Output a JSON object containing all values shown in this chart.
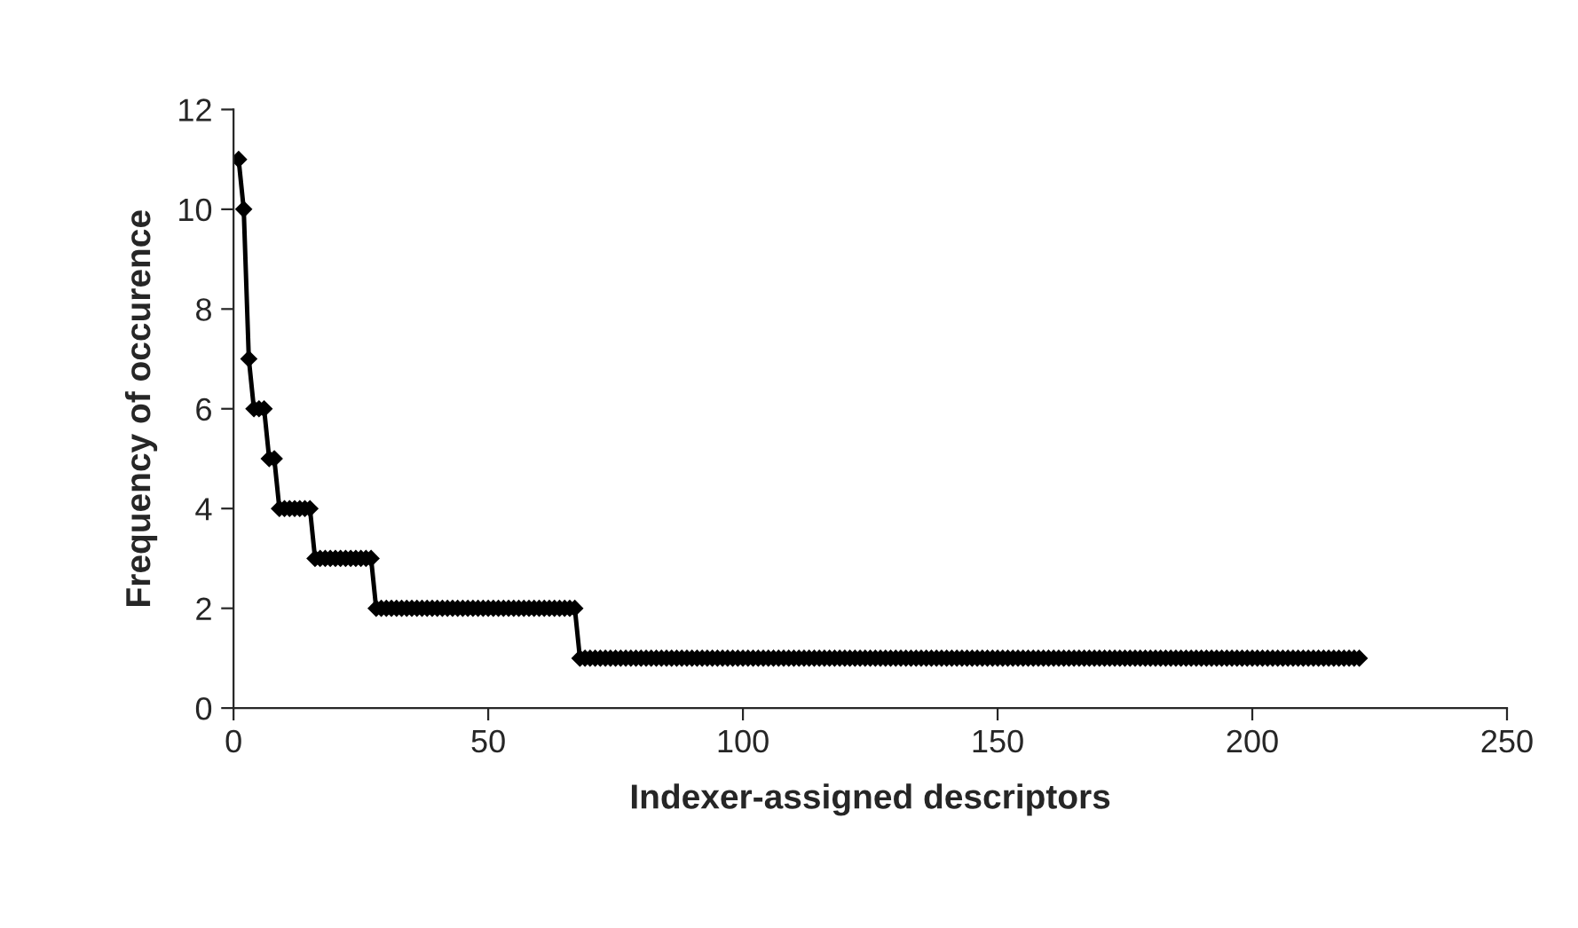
{
  "chart_data": {
    "type": "line",
    "xlabel": "Indexer-assigned descriptors",
    "ylabel": "Frequency of occurence",
    "xlim": [
      0,
      250
    ],
    "xticks": [
      0,
      50,
      100,
      150,
      200,
      250
    ],
    "ylim": [
      0,
      12
    ],
    "yticks": [
      0,
      2,
      4,
      6,
      8,
      10,
      12
    ],
    "grid": false,
    "marker": "diamond",
    "line_style": "solid",
    "series": [
      {
        "color": "#000000",
        "x": [
          1,
          2,
          3,
          4,
          5,
          6,
          7,
          8,
          9,
          10,
          11,
          12,
          13,
          14,
          15,
          16,
          17,
          18,
          19,
          20,
          21,
          22,
          23,
          24,
          25,
          26,
          27,
          28,
          29,
          30,
          31,
          32,
          33,
          34,
          35,
          36,
          37,
          38,
          39,
          40,
          41,
          42,
          43,
          44,
          45,
          46,
          47,
          48,
          49,
          50,
          51,
          52,
          53,
          54,
          55,
          56,
          57,
          58,
          59,
          60,
          61,
          62,
          63,
          64,
          65,
          66,
          67,
          68,
          69,
          70,
          71,
          72,
          73,
          74,
          75,
          76,
          77,
          78,
          79,
          80,
          81,
          82,
          83,
          84,
          85,
          86,
          87,
          88,
          89,
          90,
          91,
          92,
          93,
          94,
          95,
          96,
          97,
          98,
          99,
          100,
          101,
          102,
          103,
          104,
          105,
          106,
          107,
          108,
          109,
          110,
          111,
          112,
          113,
          114,
          115,
          116,
          117,
          118,
          119,
          120,
          121,
          122,
          123,
          124,
          125,
          126,
          127,
          128,
          129,
          130,
          131,
          132,
          133,
          134,
          135,
          136,
          137,
          138,
          139,
          140,
          141,
          142,
          143,
          144,
          145,
          146,
          147,
          148,
          149,
          150,
          151,
          152,
          153,
          154,
          155,
          156,
          157,
          158,
          159,
          160,
          161,
          162,
          163,
          164,
          165,
          166,
          167,
          168,
          169,
          170,
          171,
          172,
          173,
          174,
          175,
          176,
          177,
          178,
          179,
          180,
          181,
          182,
          183,
          184,
          185,
          186,
          187,
          188,
          189,
          190,
          191,
          192,
          193,
          194,
          195,
          196,
          197,
          198,
          199,
          200,
          201,
          202,
          203,
          204,
          205,
          206,
          207,
          208,
          209,
          210,
          211,
          212,
          213,
          214,
          215,
          216,
          217,
          218,
          219,
          220,
          221
        ],
        "values": [
          11,
          10,
          7,
          6,
          6,
          6,
          5,
          5,
          4,
          4,
          4,
          4,
          4,
          4,
          4,
          3,
          3,
          3,
          3,
          3,
          3,
          3,
          3,
          3,
          3,
          3,
          3,
          2,
          2,
          2,
          2,
          2,
          2,
          2,
          2,
          2,
          2,
          2,
          2,
          2,
          2,
          2,
          2,
          2,
          2,
          2,
          2,
          2,
          2,
          2,
          2,
          2,
          2,
          2,
          2,
          2,
          2,
          2,
          2,
          2,
          2,
          2,
          2,
          2,
          2,
          2,
          2,
          1,
          1,
          1,
          1,
          1,
          1,
          1,
          1,
          1,
          1,
          1,
          1,
          1,
          1,
          1,
          1,
          1,
          1,
          1,
          1,
          1,
          1,
          1,
          1,
          1,
          1,
          1,
          1,
          1,
          1,
          1,
          1,
          1,
          1,
          1,
          1,
          1,
          1,
          1,
          1,
          1,
          1,
          1,
          1,
          1,
          1,
          1,
          1,
          1,
          1,
          1,
          1,
          1,
          1,
          1,
          1,
          1,
          1,
          1,
          1,
          1,
          1,
          1,
          1,
          1,
          1,
          1,
          1,
          1,
          1,
          1,
          1,
          1,
          1,
          1,
          1,
          1,
          1,
          1,
          1,
          1,
          1,
          1,
          1,
          1,
          1,
          1,
          1,
          1,
          1,
          1,
          1,
          1,
          1,
          1,
          1,
          1,
          1,
          1,
          1,
          1,
          1,
          1,
          1,
          1,
          1,
          1,
          1,
          1,
          1,
          1,
          1,
          1,
          1,
          1,
          1,
          1,
          1,
          1,
          1,
          1,
          1,
          1,
          1,
          1,
          1,
          1,
          1,
          1,
          1,
          1,
          1,
          1,
          1,
          1,
          1,
          1,
          1,
          1,
          1,
          1,
          1,
          1,
          1,
          1,
          1,
          1,
          1,
          1,
          1,
          1,
          1,
          1,
          1
        ]
      }
    ]
  }
}
